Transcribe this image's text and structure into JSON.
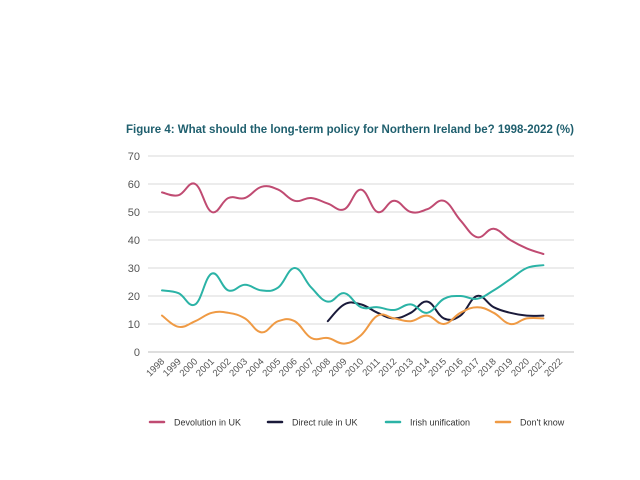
{
  "chart_data": {
    "type": "line",
    "title": "Figure 4: What should the long-term policy for Northern Ireland be? 1998-2022 (%)",
    "xlabel": "",
    "ylabel": "",
    "ylim": [
      0,
      70
    ],
    "yticks": [
      "0",
      "10",
      "20",
      "30",
      "40",
      "50",
      "60",
      "70"
    ],
    "grid": true,
    "legend_position": "bottom",
    "categories": [
      "1998",
      "1999",
      "2000",
      "2001",
      "2002",
      "2003",
      "2004",
      "2005",
      "2006",
      "2007",
      "2008",
      "2009",
      "2010",
      "2011",
      "2012",
      "2013",
      "2014",
      "2015",
      "2016",
      "2017",
      "2018",
      "2019",
      "2020",
      "2021",
      "2022"
    ],
    "series": [
      {
        "name": "Devolution in UK",
        "color": "#c04b72",
        "values": [
          57,
          56,
          60,
          50,
          55,
          55,
          59,
          58,
          54,
          55,
          53,
          51,
          58,
          50,
          54,
          50,
          51,
          54,
          47,
          41,
          44,
          40,
          37,
          35,
          null
        ]
      },
      {
        "name": "Direct rule in UK",
        "color": "#1a1a3a",
        "values": [
          null,
          null,
          null,
          null,
          null,
          null,
          null,
          null,
          null,
          null,
          11,
          17,
          17,
          14,
          12,
          14,
          18,
          12,
          13,
          20,
          16,
          14,
          13,
          13,
          null
        ]
      },
      {
        "name": "Irish unification",
        "color": "#2bb3a6",
        "values": [
          22,
          21,
          17,
          28,
          22,
          24,
          22,
          23,
          30,
          23,
          18,
          21,
          16,
          16,
          15,
          17,
          14,
          19,
          20,
          19,
          22,
          26,
          30,
          31,
          null
        ]
      },
      {
        "name": "Don't know",
        "color": "#ef9a44",
        "values": [
          13,
          9,
          11,
          14,
          14,
          12,
          7,
          11,
          11,
          5,
          5,
          3,
          6,
          13,
          12,
          11,
          13,
          10,
          14,
          16,
          14,
          10,
          12,
          12,
          null
        ]
      }
    ]
  }
}
